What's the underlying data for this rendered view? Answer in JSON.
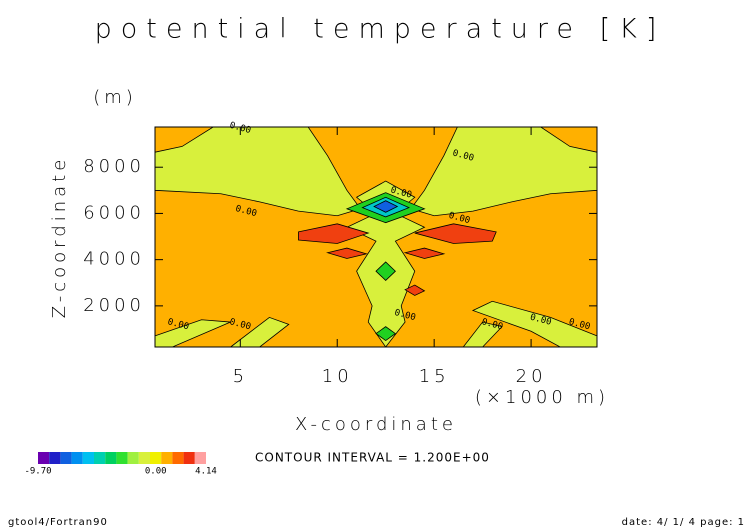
{
  "chart_data": {
    "type": "contour",
    "title": "potential temperature [K]",
    "xlabel": "X-coordinate",
    "ylabel": "Z-coordinate",
    "xunit": "(×1000 m)",
    "yunit": "(m)",
    "xlim": [
      0.6,
      23.4
    ],
    "ylim": [
      220,
      9740
    ],
    "xticks": [
      5,
      10,
      15,
      20
    ],
    "yticks": [
      2000,
      4000,
      6000,
      8000
    ],
    "background_color": "#ffb000",
    "regions": [
      {
        "color": "#d8f03c",
        "points": [
          [
            0.6,
            8650
          ],
          [
            2,
            8900
          ],
          [
            3.6,
            9740
          ],
          [
            8.5,
            9740
          ],
          [
            9.5,
            8500
          ],
          [
            10.5,
            7000
          ],
          [
            11.2,
            6200
          ],
          [
            10,
            5900
          ],
          [
            8,
            6100
          ],
          [
            6,
            6500
          ],
          [
            4,
            6850
          ],
          [
            0.6,
            7000
          ]
        ]
      },
      {
        "color": "#d8f03c",
        "points": [
          [
            23.4,
            8650
          ],
          [
            22,
            8900
          ],
          [
            20.5,
            9740
          ],
          [
            16.2,
            9740
          ],
          [
            15.5,
            8500
          ],
          [
            14.5,
            7000
          ],
          [
            13.8,
            6200
          ],
          [
            15,
            5900
          ],
          [
            17,
            6100
          ],
          [
            19,
            6500
          ],
          [
            21,
            6850
          ],
          [
            23.4,
            7000
          ]
        ]
      },
      {
        "color": "#d8f03c",
        "points": [
          [
            11,
            6700
          ],
          [
            12.5,
            7400
          ],
          [
            14,
            6700
          ],
          [
            13,
            6000
          ],
          [
            14.5,
            5400
          ],
          [
            13,
            4800
          ],
          [
            14,
            3500
          ],
          [
            13.3,
            2000
          ],
          [
            13.5,
            1300
          ],
          [
            12.5,
            220
          ],
          [
            11.6,
            1300
          ],
          [
            11.8,
            2000
          ],
          [
            11,
            3500
          ],
          [
            12,
            4800
          ],
          [
            10.5,
            5400
          ],
          [
            12,
            6000
          ]
        ]
      },
      {
        "color": "#d8f03c",
        "points": [
          [
            0.6,
            700
          ],
          [
            3,
            1400
          ],
          [
            4.5,
            1300
          ],
          [
            1.5,
            220
          ],
          [
            0.6,
            220
          ]
        ]
      },
      {
        "color": "#d8f03c",
        "points": [
          [
            4.5,
            220
          ],
          [
            6.5,
            1500
          ],
          [
            7.5,
            1200
          ],
          [
            6,
            220
          ]
        ]
      },
      {
        "color": "#d8f03c",
        "points": [
          [
            23.4,
            700
          ],
          [
            21,
            1500
          ],
          [
            18,
            2200
          ],
          [
            17,
            1800
          ],
          [
            20,
            900
          ],
          [
            21.5,
            220
          ],
          [
            23.4,
            220
          ]
        ]
      },
      {
        "color": "#d8f03c",
        "points": [
          [
            16.5,
            220
          ],
          [
            17.5,
            1300
          ],
          [
            18.5,
            1100
          ],
          [
            17.5,
            220
          ]
        ]
      },
      {
        "color": "#20d020",
        "points": [
          [
            10.5,
            6200
          ],
          [
            12.5,
            6900
          ],
          [
            14.5,
            6200
          ],
          [
            12.5,
            5600
          ]
        ]
      },
      {
        "color": "#00c8c8",
        "points": [
          [
            11.3,
            6250
          ],
          [
            12.5,
            6700
          ],
          [
            13.7,
            6250
          ],
          [
            12.5,
            5850
          ]
        ]
      },
      {
        "color": "#1060e0",
        "points": [
          [
            11.9,
            6300
          ],
          [
            12.5,
            6550
          ],
          [
            13.1,
            6300
          ],
          [
            12.5,
            6050
          ]
        ]
      },
      {
        "color": "#f04010",
        "points": [
          [
            8,
            5200
          ],
          [
            10,
            5550
          ],
          [
            11.6,
            5150
          ],
          [
            10,
            4700
          ],
          [
            8,
            4850
          ]
        ]
      },
      {
        "color": "#f04010",
        "points": [
          [
            14,
            5150
          ],
          [
            16,
            5550
          ],
          [
            18.2,
            5200
          ],
          [
            18,
            4800
          ],
          [
            16,
            4700
          ]
        ]
      },
      {
        "color": "#f04010",
        "points": [
          [
            9.5,
            4300
          ],
          [
            10.5,
            4500
          ],
          [
            11.5,
            4250
          ],
          [
            10.5,
            4050
          ]
        ]
      },
      {
        "color": "#f04010",
        "points": [
          [
            13.5,
            4300
          ],
          [
            14.5,
            4500
          ],
          [
            15.5,
            4250
          ],
          [
            14.5,
            4050
          ]
        ]
      },
      {
        "color": "#f04010",
        "points": [
          [
            13.5,
            2700
          ],
          [
            14,
            2900
          ],
          [
            14.5,
            2650
          ],
          [
            14,
            2450
          ]
        ]
      },
      {
        "color": "#20d020",
        "points": [
          [
            12,
            3500
          ],
          [
            12.5,
            3900
          ],
          [
            13,
            3500
          ],
          [
            12.5,
            3100
          ]
        ]
      },
      {
        "color": "#20d020",
        "points": [
          [
            12,
            800
          ],
          [
            12.5,
            1100
          ],
          [
            13,
            800
          ],
          [
            12.5,
            500
          ]
        ]
      }
    ],
    "contour_labels": [
      {
        "x": 5,
        "y": 9700,
        "label": "0.00"
      },
      {
        "x": 5.3,
        "y": 6100,
        "label": "0.00"
      },
      {
        "x": 16.5,
        "y": 8500,
        "label": "0.00"
      },
      {
        "x": 13.3,
        "y": 6900,
        "label": "0.00"
      },
      {
        "x": 16.3,
        "y": 5800,
        "label": "0.00"
      },
      {
        "x": 1.8,
        "y": 1200,
        "label": "0.00"
      },
      {
        "x": 5,
        "y": 1200,
        "label": "0.00"
      },
      {
        "x": 13.5,
        "y": 1600,
        "label": "0.00"
      },
      {
        "x": 18,
        "y": 1200,
        "label": "0.00"
      },
      {
        "x": 20.5,
        "y": 1400,
        "label": "0.00"
      },
      {
        "x": 22.5,
        "y": 1200,
        "label": "0.00"
      }
    ],
    "colorbar": {
      "colors": [
        "#6a00b0",
        "#2020c8",
        "#1060e0",
        "#0090f0",
        "#00c0f0",
        "#00d0b0",
        "#00d060",
        "#30e030",
        "#a0f040",
        "#d8f03c",
        "#f0f000",
        "#ffb000",
        "#ff6a00",
        "#f03010",
        "#ffa0a0"
      ],
      "lim": [
        -9.7,
        4.14
      ],
      "ticks": [
        {
          "value": -9.7,
          "label": "-9.70"
        },
        {
          "value": 0.0,
          "label": "0.00"
        },
        {
          "value": 4.14,
          "label": "4.14"
        }
      ]
    },
    "contour_interval": "CONTOUR INTERVAL = 1.200E+00",
    "footer_left": "gtool4/Fortran90",
    "footer_right": "date: 4/ 1/ 4 page: 1"
  }
}
